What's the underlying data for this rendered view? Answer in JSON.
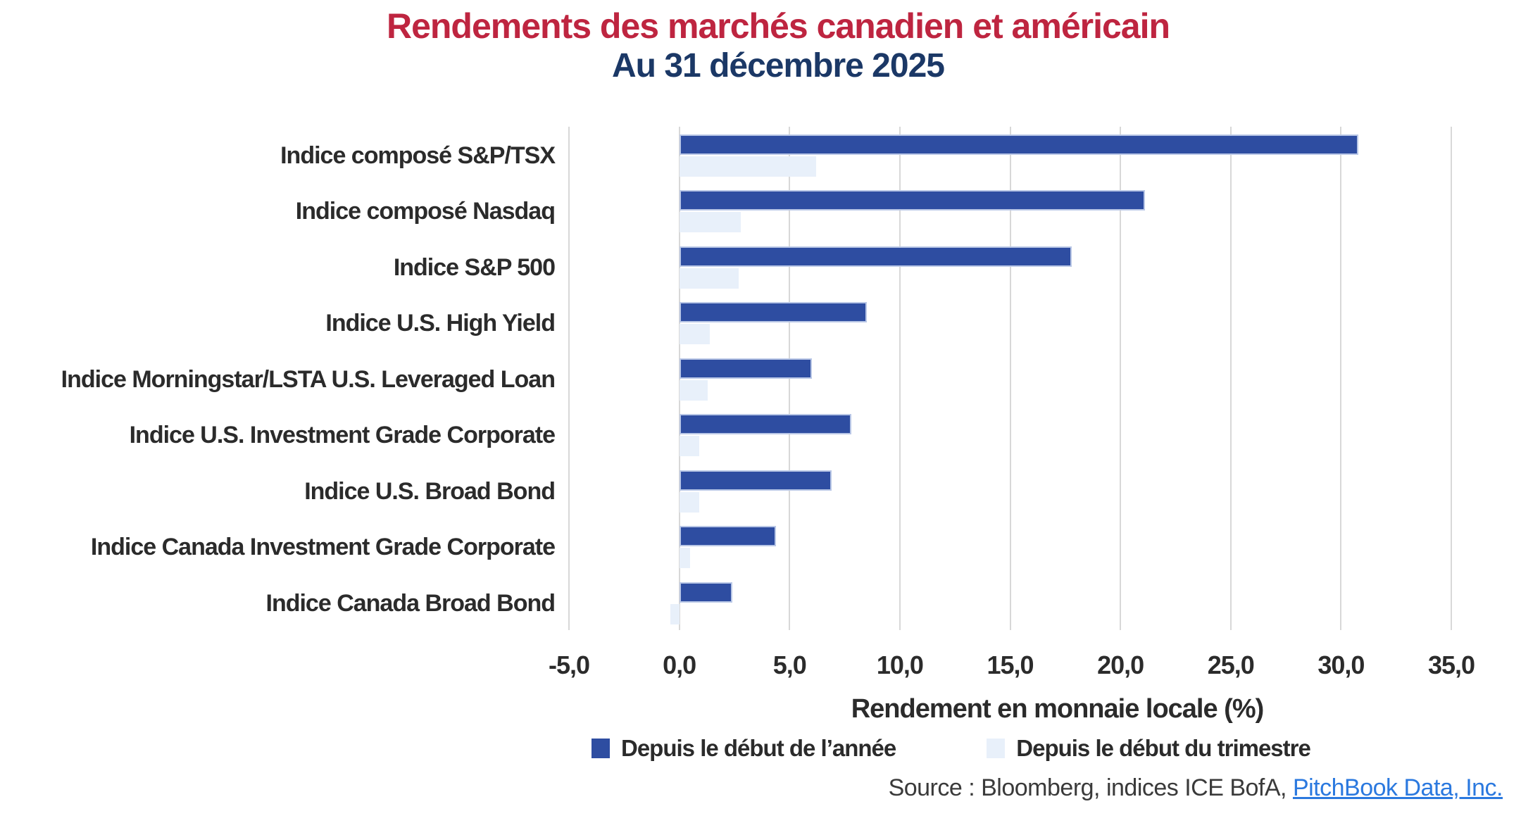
{
  "header": {
    "title": "Rendements des marchés canadien et américain",
    "subtitle": "Au 31 décembre 2025"
  },
  "colors": {
    "title_red": "#BE2540",
    "subtitle_navy": "#1B3866",
    "bar_ytd": "#2E4DA1",
    "bar_qtd": "#E8F0FA",
    "gridline": "#D8D8D8",
    "text": "#2B2B2B",
    "link_blue": "#2B79DF"
  },
  "chart_data": {
    "type": "bar",
    "orientation": "horizontal",
    "title": "Rendements des marchés canadien et américain",
    "subtitle": "Au 31 décembre 2025",
    "categories": [
      "Indice composé S&P/TSX",
      "Indice composé Nasdaq",
      "Indice S&P 500",
      "Indice U.S. High Yield",
      "Indice Morningstar/LSTA U.S. Leveraged Loan",
      "Indice U.S. Investment Grade Corporate",
      "Indice U.S. Broad Bond",
      "Indice Canada Investment Grade Corporate",
      "Indice Canada Broad Bond"
    ],
    "series": [
      {
        "name": "Depuis le début de l’année",
        "color": "#2E4DA1",
        "values": [
          30.8,
          21.1,
          17.8,
          8.5,
          6.0,
          7.8,
          6.9,
          4.4,
          2.4
        ]
      },
      {
        "name": "Depuis le début du trimestre",
        "color": "#E8F0FA",
        "values": [
          6.2,
          2.8,
          2.7,
          1.4,
          1.3,
          0.9,
          0.9,
          0.5,
          -0.4
        ]
      }
    ],
    "xlabel": "Rendement en monnaie locale (%)",
    "ylabel": "",
    "xlim": [
      -5,
      35
    ],
    "xtick_step": 5,
    "xtick_labels": [
      "-5,0",
      "0,0",
      "5,0",
      "10,0",
      "15,0",
      "20,0",
      "25,0",
      "30,0",
      "35,0"
    ],
    "grid": true,
    "legend_position": "bottom"
  },
  "legend": {
    "items": [
      {
        "label": "Depuis le début de l’année",
        "color": "#2E4DA1"
      },
      {
        "label": "Depuis le début du trimestre",
        "color": "#E8F0FA"
      }
    ]
  },
  "source": {
    "prefix": "Source : Bloomberg, indices ICE BofA, ",
    "link": "PitchBook Data, Inc."
  }
}
